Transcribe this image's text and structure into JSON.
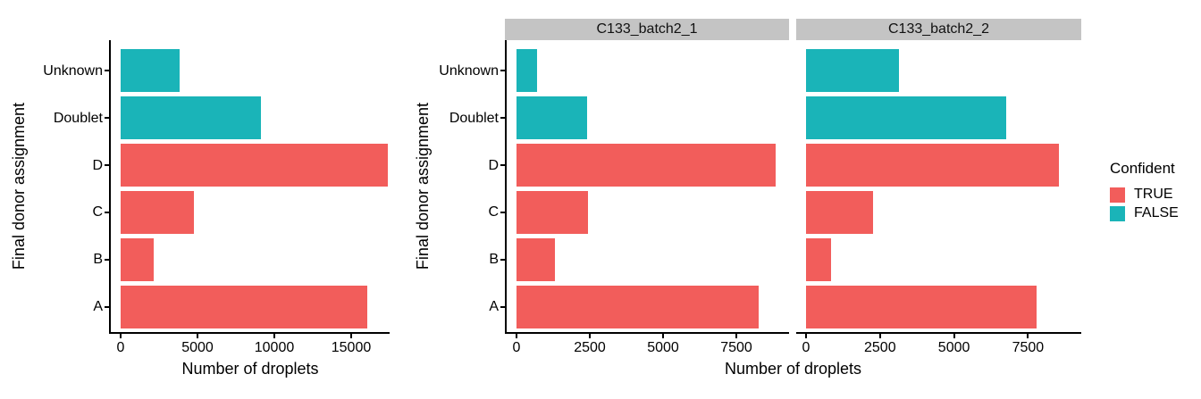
{
  "figure": {
    "xlabel": "Number of droplets",
    "ylabel": "Final donor assignment"
  },
  "legend": {
    "title": "Confident",
    "items": [
      {
        "label": "TRUE",
        "confident": true
      },
      {
        "label": "FALSE",
        "confident": false
      }
    ]
  },
  "colors": {
    "confident_true": "#F25D5B",
    "confident_false": "#1AB4B8",
    "strip_bg": "#C4C4C4",
    "axis": "#000000",
    "text": "#000000"
  },
  "chart_data": {
    "type": "bar",
    "orientation": "horizontal",
    "title": "",
    "xlabel": "Number of droplets",
    "ylabel": "Final donor assignment",
    "legend_title": "Confident",
    "legend_position": "right",
    "grid": false,
    "categories": [
      "Unknown",
      "Doublet",
      "D",
      "C",
      "B",
      "A"
    ],
    "category_confident": [
      false,
      false,
      true,
      true,
      true,
      true
    ],
    "panels": [
      {
        "facet": "",
        "values": [
          3850,
          9100,
          17400,
          4750,
          2150,
          16050
        ],
        "xticks": [
          0,
          5000,
          10000,
          15000
        ],
        "xmax": 17500
      },
      {
        "facet": "C133_batch2_1",
        "values": [
          700,
          2400,
          8850,
          2450,
          1300,
          8250
        ],
        "xticks": [
          0,
          2500,
          5000,
          7500
        ],
        "xmax": 9300
      },
      {
        "facet": "C133_batch2_2",
        "values": [
          3150,
          6750,
          8550,
          2250,
          850,
          7800
        ],
        "xticks": [
          0,
          2500,
          5000,
          7500
        ],
        "xmax": 9300
      }
    ]
  }
}
